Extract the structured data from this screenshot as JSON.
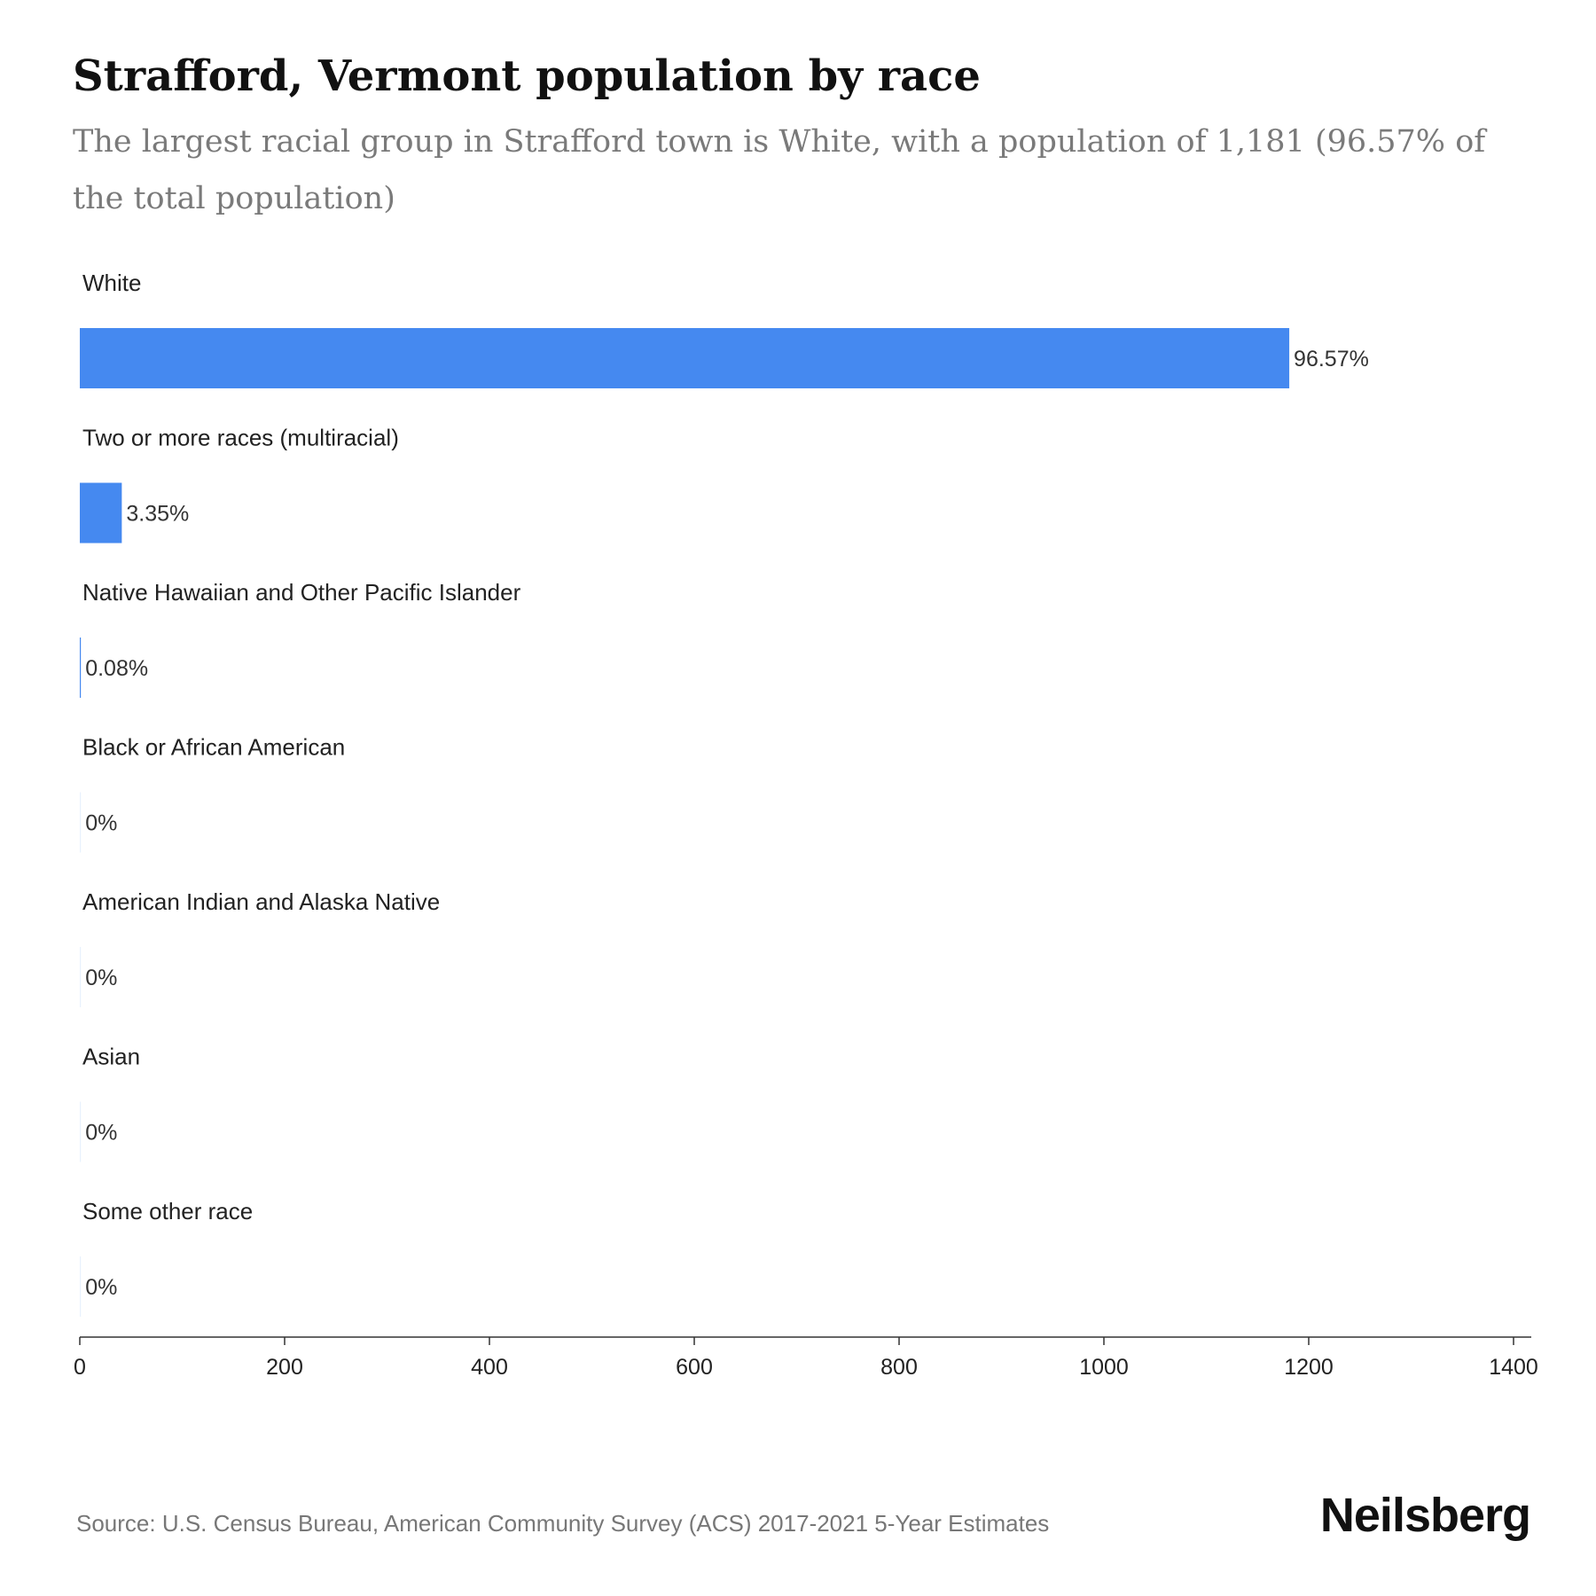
{
  "chart_data": {
    "type": "bar",
    "orientation": "horizontal",
    "title": "Strafford, Vermont population by race",
    "subtitle": "The largest racial group in Strafford town is White, with a population of 1,181 (96.57% of the total population)",
    "categories": [
      "White",
      "Two or more races (multiracial)",
      "Native Hawaiian and Other Pacific Islander",
      "Black or African American",
      "American Indian and Alaska Native",
      "Asian",
      "Some other race"
    ],
    "values": [
      1181,
      41,
      1,
      0,
      0,
      0,
      0
    ],
    "percent_labels": [
      "96.57%",
      "3.35%",
      "0.08%",
      "0%",
      "0%",
      "0%",
      "0%"
    ],
    "xlim": [
      0,
      1400
    ],
    "xticks": [
      "0",
      "200",
      "400",
      "600",
      "800",
      "1000",
      "1200",
      "1400"
    ],
    "xtick_values": [
      0,
      200,
      400,
      600,
      800,
      1000,
      1200,
      1400
    ],
    "bar_color": "#4589f0",
    "grid": false,
    "legend": "none"
  },
  "footer": {
    "source": "Source: U.S. Census Bureau, American Community Survey (ACS) 2017-2021 5-Year Estimates",
    "brand": "Neilsberg"
  }
}
